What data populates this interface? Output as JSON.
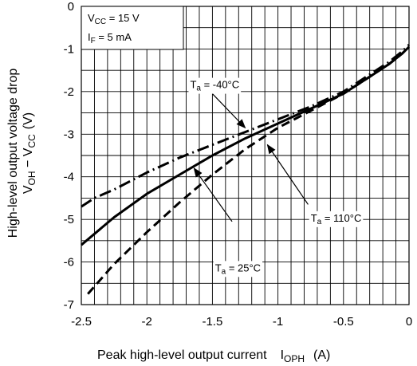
{
  "chart_data": {
    "type": "line",
    "xlabel": "Peak high-level output current",
    "xlabel_symbol": {
      "main": "I",
      "sub": "OPH"
    },
    "xlabel_unit": "(A)",
    "ylabel_line1": "High-level output voltage drop",
    "ylabel_line2": {
      "v": "V",
      "v_sub": "OH",
      "dash": " − ",
      "vcc": "V",
      "vcc_sub": "CC",
      "unit": "(V)"
    },
    "xlim": [
      -2.5,
      0
    ],
    "ylim": [
      -7,
      0
    ],
    "x_ticks": [
      -2.5,
      -2,
      -1.5,
      -1,
      -0.5,
      0
    ],
    "x_tick_labels": [
      "-2.5",
      "-2",
      "-1.5",
      "-1",
      "-0.5",
      "0"
    ],
    "y_ticks": [
      0,
      -1,
      -2,
      -3,
      -4,
      -5,
      -6,
      -7
    ],
    "y_tick_labels": [
      "0",
      "-1",
      "-2",
      "-3",
      "-4",
      "-5",
      "-6",
      "-7"
    ],
    "grid": true,
    "grid_minor_step": {
      "x": 0.1,
      "y": 0.5
    },
    "conditions": {
      "vcc": {
        "main": "V",
        "sub": "CC",
        "rest": " = 15 V"
      },
      "if": {
        "main": "I",
        "sub": "F",
        "rest": " = 5 mA"
      }
    },
    "series": [
      {
        "name": "Ta = -40°C",
        "style": "dash-dot",
        "label": {
          "main": "T",
          "sub": "a",
          "rest": " = -40°C"
        },
        "points": [
          [
            -2.5,
            -4.7
          ],
          [
            -2.4,
            -4.5
          ],
          [
            -2.25,
            -4.3
          ],
          [
            -2.0,
            -3.9
          ],
          [
            -1.75,
            -3.55
          ],
          [
            -1.5,
            -3.25
          ],
          [
            -1.25,
            -2.95
          ],
          [
            -1.0,
            -2.65
          ],
          [
            -0.75,
            -2.35
          ],
          [
            -0.5,
            -2.0
          ],
          [
            -0.3,
            -1.6
          ],
          [
            -0.15,
            -1.3
          ],
          [
            -0.05,
            -1.05
          ],
          [
            0,
            -0.9
          ]
        ]
      },
      {
        "name": "Ta = 25°C",
        "style": "solid",
        "label": {
          "main": "T",
          "sub": "a",
          "rest": " = 25°C"
        },
        "points": [
          [
            -2.5,
            -5.6
          ],
          [
            -2.25,
            -4.95
          ],
          [
            -2.0,
            -4.4
          ],
          [
            -1.75,
            -3.95
          ],
          [
            -1.5,
            -3.5
          ],
          [
            -1.25,
            -3.1
          ],
          [
            -1.0,
            -2.75
          ],
          [
            -0.75,
            -2.4
          ],
          [
            -0.5,
            -2.05
          ],
          [
            -0.3,
            -1.65
          ],
          [
            -0.15,
            -1.35
          ],
          [
            -0.05,
            -1.1
          ],
          [
            0,
            -0.95
          ]
        ]
      },
      {
        "name": "Ta = 110°C",
        "style": "dashed",
        "label": {
          "main": "T",
          "sub": "a",
          "rest": " = 110°C"
        },
        "points": [
          [
            -2.45,
            -6.75
          ],
          [
            -2.25,
            -6.05
          ],
          [
            -2.0,
            -5.3
          ],
          [
            -1.75,
            -4.6
          ],
          [
            -1.5,
            -3.95
          ],
          [
            -1.25,
            -3.35
          ],
          [
            -1.0,
            -2.85
          ],
          [
            -0.75,
            -2.45
          ],
          [
            -0.5,
            -2.05
          ],
          [
            -0.3,
            -1.65
          ],
          [
            -0.15,
            -1.35
          ],
          [
            -0.05,
            -1.1
          ],
          [
            0,
            -0.95
          ]
        ]
      }
    ],
    "annotations": [
      {
        "series": 0,
        "text_at": [
          -1.67,
          -1.92
        ],
        "arrow_from": [
          -1.5,
          -2.05
        ],
        "arrow_to": [
          -1.25,
          -2.85
        ],
        "tail_from": [
          -1.67,
          -1.92
        ]
      },
      {
        "series": 1,
        "text_at": [
          -1.48,
          -6.22
        ],
        "arrow_from": [
          -1.35,
          -5.05
        ],
        "arrow_to": [
          -1.64,
          -3.8
        ],
        "tail_from": [
          -1.55,
          -6.22
        ]
      },
      {
        "series": 2,
        "text_at": [
          -0.75,
          -5.05
        ],
        "arrow_from": [
          -0.77,
          -4.65
        ],
        "arrow_to": [
          -1.08,
          -3.25
        ],
        "tail_from": [
          -0.23,
          -4.95
        ]
      }
    ]
  }
}
